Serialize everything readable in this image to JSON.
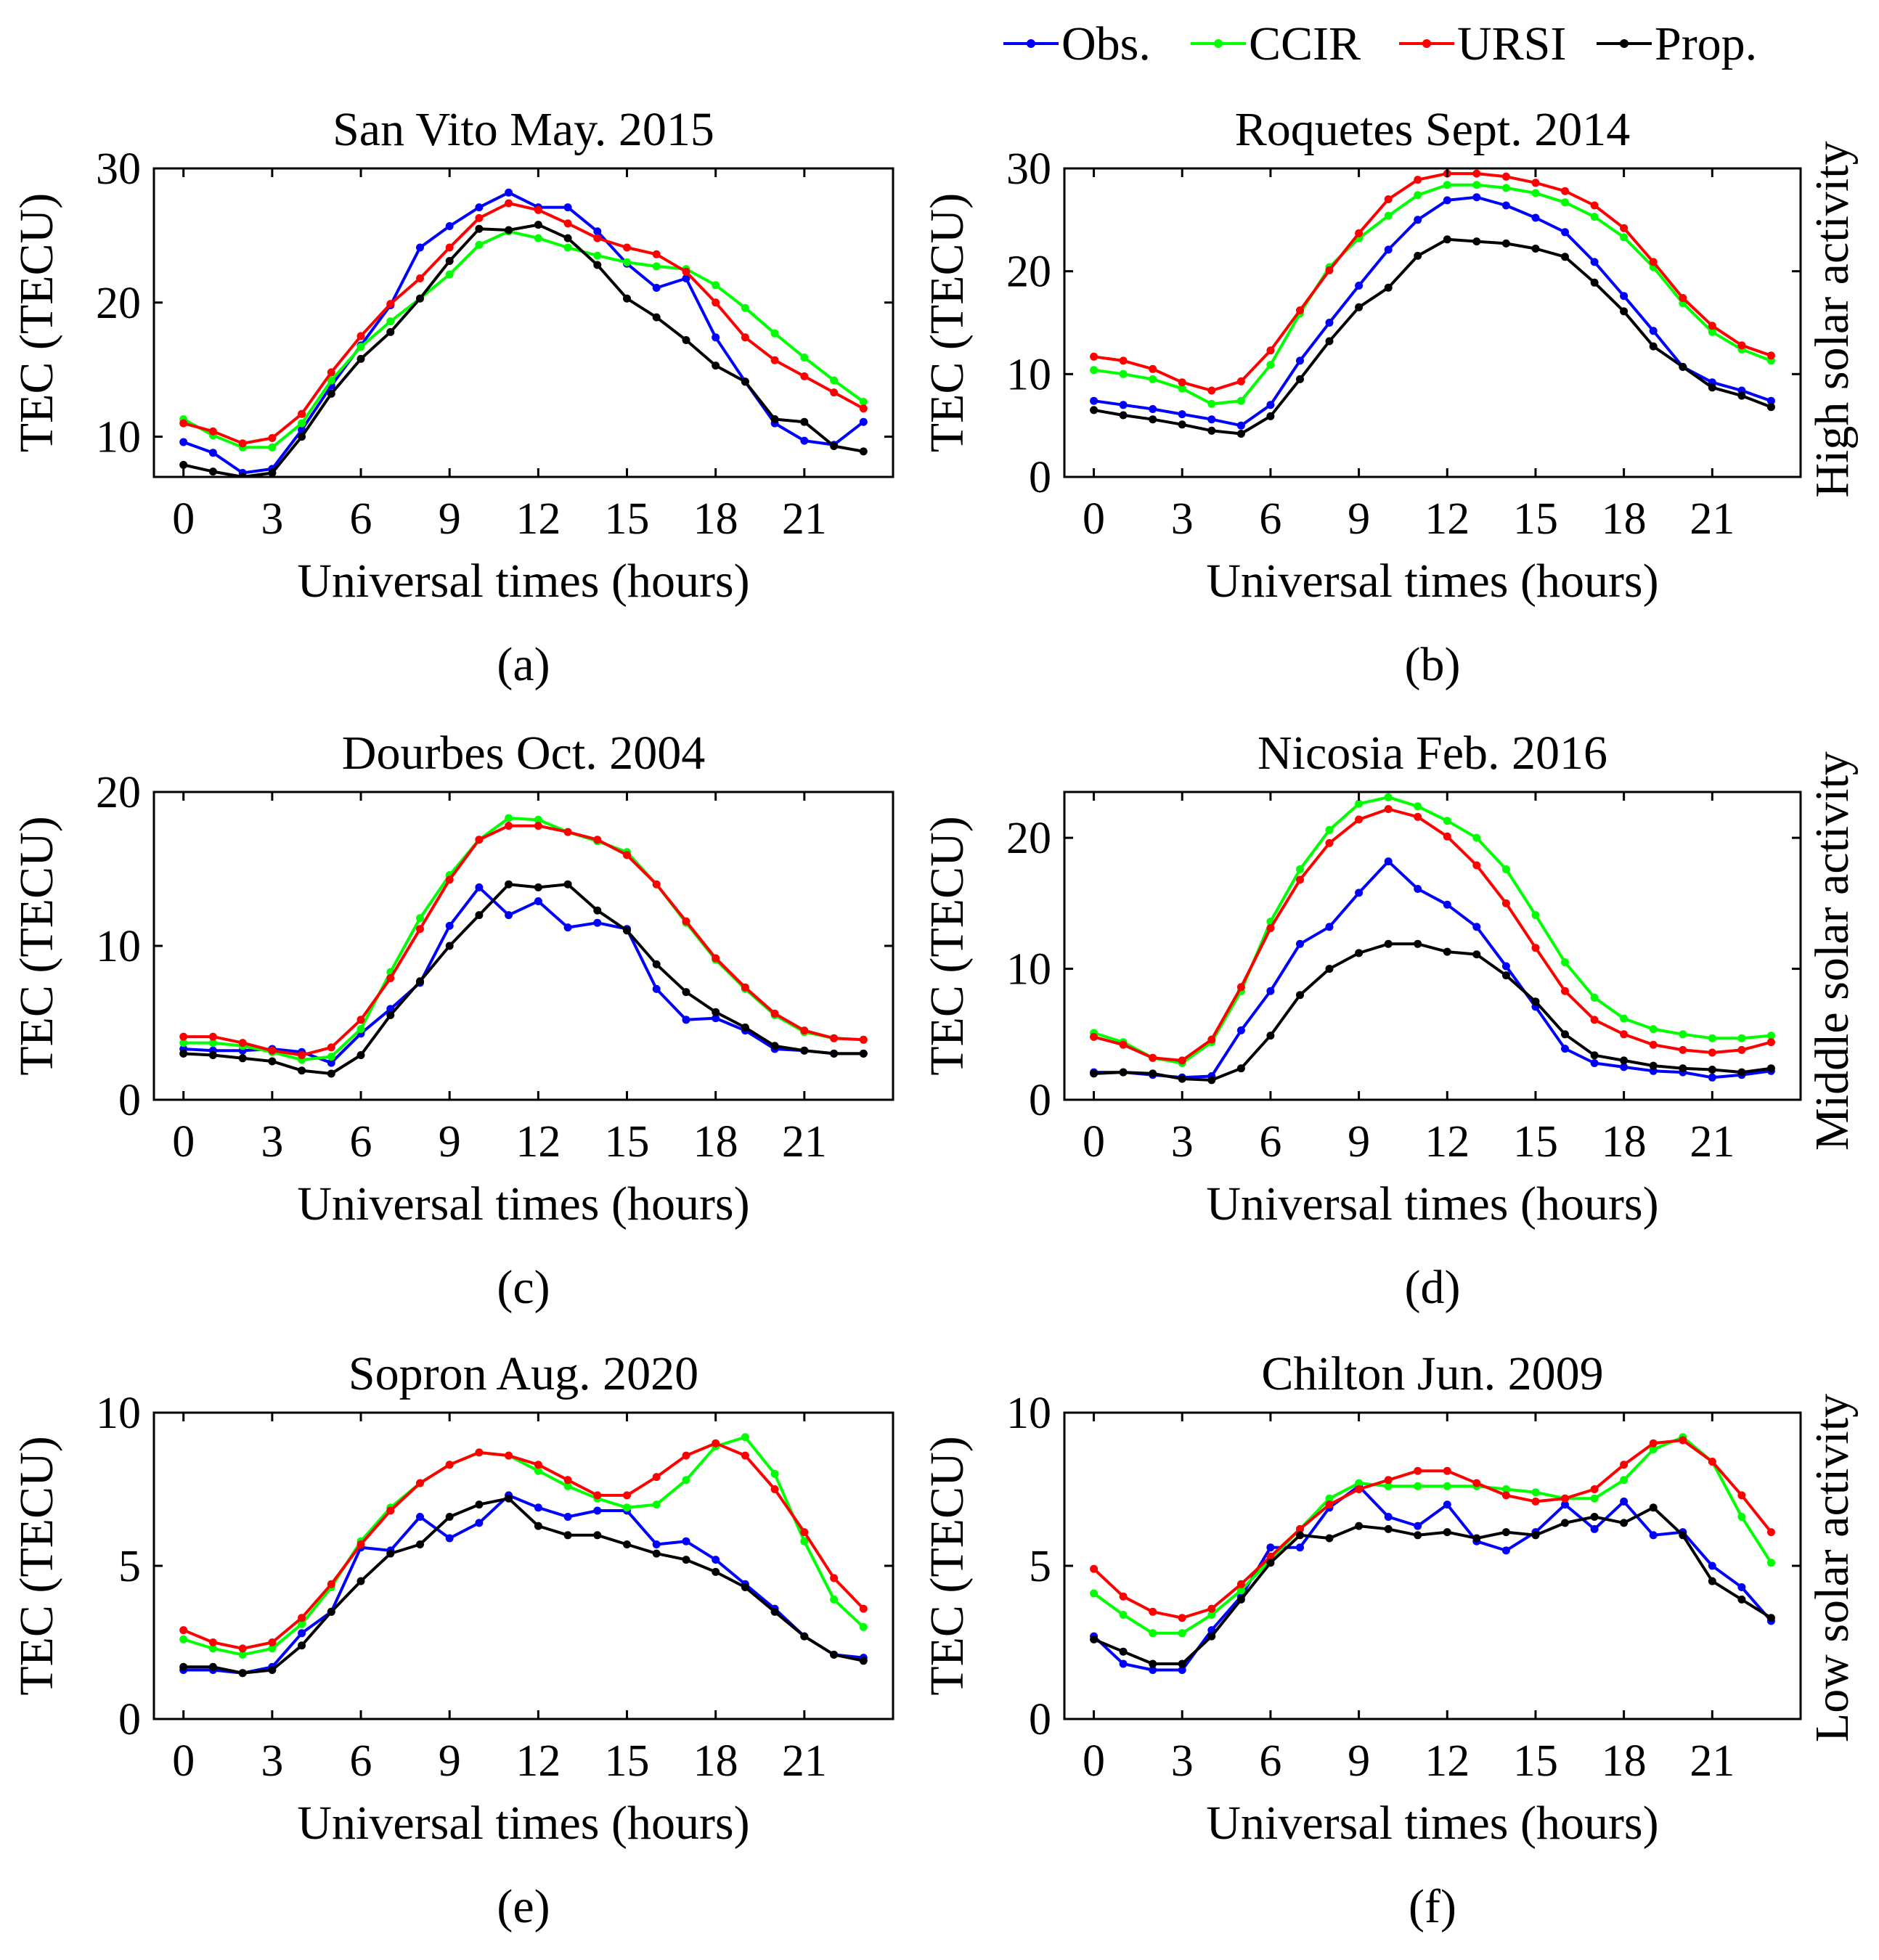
{
  "legend": [
    {
      "label": "Obs.",
      "color": "#0000ff"
    },
    {
      "label": "CCIR",
      "color": "#00ff00"
    },
    {
      "label": "URSI",
      "color": "#ff0000"
    },
    {
      "label": "Prop.",
      "color": "#000000"
    }
  ],
  "side_labels": [
    "High solar activity",
    "Middle solar activity",
    "Low solar activity"
  ],
  "chart_data": [
    {
      "type": "line",
      "title": "San Vito May. 2015",
      "caption": "(a)",
      "xlabel": "Universal times (hours)",
      "ylabel": "TEC (TECU)",
      "xlim": [
        -1,
        24
      ],
      "ylim": [
        7,
        30
      ],
      "xticks": [
        0,
        3,
        6,
        9,
        12,
        15,
        18,
        21
      ],
      "yticks": [
        10,
        20,
        30
      ],
      "x": [
        0,
        1,
        2,
        3,
        4,
        5,
        6,
        7,
        8,
        9,
        10,
        11,
        12,
        13,
        14,
        15,
        16,
        17,
        18,
        19,
        20,
        21,
        22,
        23
      ],
      "series": [
        {
          "name": "Obs.",
          "color": "#0000ff",
          "values": [
            9.6,
            8.8,
            7.3,
            7.6,
            10.5,
            13.8,
            16.8,
            19.8,
            24.1,
            25.7,
            27.1,
            28.2,
            27.1,
            27.1,
            25.3,
            22.9,
            21.1,
            21.8,
            17.4,
            14.1,
            11.0,
            9.7,
            9.4,
            11.1
          ]
        },
        {
          "name": "CCIR",
          "color": "#00ff00",
          "values": [
            11.3,
            10.1,
            9.2,
            9.2,
            11.0,
            14.2,
            16.7,
            18.6,
            20.3,
            22.1,
            24.3,
            25.3,
            24.8,
            24.1,
            23.5,
            23.0,
            22.7,
            22.5,
            21.3,
            19.6,
            17.7,
            15.9,
            14.2,
            12.6
          ]
        },
        {
          "name": "URSI",
          "color": "#ff0000",
          "values": [
            11.0,
            10.4,
            9.5,
            9.9,
            11.7,
            14.8,
            17.5,
            19.9,
            21.8,
            24.1,
            26.3,
            27.4,
            26.9,
            25.9,
            24.8,
            24.1,
            23.6,
            22.3,
            20.0,
            17.4,
            15.7,
            14.5,
            13.3,
            12.1
          ]
        },
        {
          "name": "Prop.",
          "color": "#000000",
          "values": [
            7.9,
            7.4,
            7.0,
            7.3,
            10.0,
            13.2,
            15.8,
            17.8,
            20.3,
            23.1,
            25.5,
            25.4,
            25.8,
            24.8,
            22.8,
            20.3,
            18.9,
            17.2,
            15.3,
            14.1,
            11.3,
            11.1,
            9.3,
            8.9
          ]
        }
      ]
    },
    {
      "type": "line",
      "title": "Roquetes Sept. 2014",
      "caption": "(b)",
      "xlabel": "Universal times (hours)",
      "ylabel": "TEC (TECU)",
      "xlim": [
        -1,
        24
      ],
      "ylim": [
        0,
        30
      ],
      "xticks": [
        0,
        3,
        6,
        9,
        12,
        15,
        18,
        21
      ],
      "yticks": [
        0,
        10,
        20,
        30
      ],
      "x": [
        0,
        1,
        2,
        3,
        4,
        5,
        6,
        7,
        8,
        9,
        10,
        11,
        12,
        13,
        14,
        15,
        16,
        17,
        18,
        19,
        20,
        21,
        22,
        23
      ],
      "series": [
        {
          "name": "Obs.",
          "color": "#0000ff",
          "values": [
            7.4,
            7.0,
            6.6,
            6.1,
            5.6,
            5.0,
            7.0,
            11.3,
            15.0,
            18.6,
            22.1,
            25.0,
            26.9,
            27.2,
            26.4,
            25.2,
            23.8,
            20.9,
            17.6,
            14.2,
            10.7,
            9.2,
            8.4,
            7.4
          ]
        },
        {
          "name": "CCIR",
          "color": "#00ff00",
          "values": [
            10.4,
            10.0,
            9.5,
            8.6,
            7.1,
            7.4,
            10.9,
            15.9,
            20.4,
            23.2,
            25.4,
            27.4,
            28.4,
            28.4,
            28.1,
            27.6,
            26.7,
            25.3,
            23.3,
            20.4,
            16.9,
            14.1,
            12.4,
            11.3
          ]
        },
        {
          "name": "URSI",
          "color": "#ff0000",
          "values": [
            11.7,
            11.3,
            10.5,
            9.2,
            8.4,
            9.3,
            12.3,
            16.2,
            20.1,
            23.7,
            27.0,
            28.9,
            29.5,
            29.5,
            29.2,
            28.6,
            27.8,
            26.4,
            24.2,
            20.9,
            17.4,
            14.7,
            12.8,
            11.8
          ]
        },
        {
          "name": "Prop.",
          "color": "#000000",
          "values": [
            6.5,
            6.0,
            5.6,
            5.1,
            4.5,
            4.2,
            5.9,
            9.5,
            13.2,
            16.5,
            18.4,
            21.5,
            23.1,
            22.9,
            22.7,
            22.2,
            21.4,
            18.9,
            16.1,
            12.7,
            10.7,
            8.7,
            7.9,
            6.8
          ]
        }
      ]
    },
    {
      "type": "line",
      "title": "Dourbes Oct. 2004",
      "caption": "(c)",
      "xlabel": "Universal times (hours)",
      "ylabel": "TEC (TECU)",
      "xlim": [
        -1,
        24
      ],
      "ylim": [
        0,
        20
      ],
      "xticks": [
        0,
        3,
        6,
        9,
        12,
        15,
        18,
        21
      ],
      "yticks": [
        0,
        10,
        20
      ],
      "x": [
        0,
        1,
        2,
        3,
        4,
        5,
        6,
        7,
        8,
        9,
        10,
        11,
        12,
        13,
        14,
        15,
        16,
        17,
        18,
        19,
        20,
        21,
        22,
        23
      ],
      "series": [
        {
          "name": "Obs.",
          "color": "#0000ff",
          "values": [
            3.3,
            3.2,
            3.2,
            3.3,
            3.1,
            2.4,
            4.3,
            5.9,
            7.6,
            11.3,
            13.8,
            12.0,
            12.9,
            11.2,
            11.5,
            11.1,
            7.2,
            5.2,
            5.3,
            4.5,
            3.3,
            3.2,
            3.0,
            3.0
          ]
        },
        {
          "name": "CCIR",
          "color": "#00ff00",
          "values": [
            3.7,
            3.7,
            3.5,
            3.1,
            2.6,
            2.8,
            4.6,
            8.3,
            11.8,
            14.6,
            16.9,
            18.3,
            18.2,
            17.4,
            16.8,
            16.1,
            14.0,
            11.5,
            9.1,
            7.2,
            5.5,
            4.4,
            4.0,
            3.9
          ]
        },
        {
          "name": "URSI",
          "color": "#ff0000",
          "values": [
            4.1,
            4.1,
            3.7,
            3.2,
            2.9,
            3.4,
            5.2,
            7.9,
            11.1,
            14.3,
            16.9,
            17.8,
            17.8,
            17.4,
            16.9,
            15.9,
            14.0,
            11.6,
            9.2,
            7.3,
            5.6,
            4.5,
            4.0,
            3.9
          ]
        },
        {
          "name": "Prop.",
          "color": "#000000",
          "values": [
            3.0,
            2.9,
            2.7,
            2.5,
            1.9,
            1.7,
            2.9,
            5.5,
            7.7,
            10.0,
            12.0,
            14.0,
            13.8,
            14.0,
            12.3,
            11.0,
            8.8,
            7.0,
            5.7,
            4.7,
            3.5,
            3.2,
            3.0,
            3.0
          ]
        }
      ]
    },
    {
      "type": "line",
      "title": "Nicosia Feb. 2016",
      "caption": "(d)",
      "xlabel": "Universal times (hours)",
      "ylabel": "TEC (TECU)",
      "xlim": [
        -1,
        24
      ],
      "ylim": [
        0,
        23.5
      ],
      "xticks": [
        0,
        3,
        6,
        9,
        12,
        15,
        18,
        21
      ],
      "yticks": [
        0,
        10,
        20
      ],
      "x": [
        0,
        1,
        2,
        3,
        4,
        5,
        6,
        7,
        8,
        9,
        10,
        11,
        12,
        13,
        14,
        15,
        16,
        17,
        18,
        19,
        20,
        21,
        22,
        23
      ],
      "series": [
        {
          "name": "Obs.",
          "color": "#0000ff",
          "values": [
            2.1,
            2.1,
            1.9,
            1.7,
            1.8,
            5.3,
            8.3,
            11.9,
            13.2,
            15.8,
            18.2,
            16.1,
            14.9,
            13.2,
            10.2,
            7.1,
            3.9,
            2.8,
            2.5,
            2.2,
            2.1,
            1.7,
            1.9,
            2.2
          ]
        },
        {
          "name": "CCIR",
          "color": "#00ff00",
          "values": [
            5.1,
            4.4,
            3.2,
            2.8,
            4.4,
            8.3,
            13.6,
            17.6,
            20.6,
            22.6,
            23.1,
            22.4,
            21.3,
            20.0,
            17.6,
            14.1,
            10.5,
            7.8,
            6.2,
            5.4,
            5.0,
            4.7,
            4.7,
            4.9
          ]
        },
        {
          "name": "URSI",
          "color": "#ff0000",
          "values": [
            4.8,
            4.2,
            3.2,
            3.0,
            4.6,
            8.6,
            13.1,
            16.8,
            19.6,
            21.4,
            22.2,
            21.6,
            20.1,
            17.9,
            15.0,
            11.6,
            8.3,
            6.1,
            5.0,
            4.2,
            3.8,
            3.6,
            3.8,
            4.4
          ]
        },
        {
          "name": "Prop.",
          "color": "#000000",
          "values": [
            2.0,
            2.1,
            2.0,
            1.6,
            1.5,
            2.4,
            4.9,
            8.0,
            10.0,
            11.2,
            11.9,
            11.9,
            11.3,
            11.1,
            9.5,
            7.5,
            5.0,
            3.4,
            3.0,
            2.6,
            2.4,
            2.3,
            2.1,
            2.4
          ]
        }
      ]
    },
    {
      "type": "line",
      "title": "Sopron Aug. 2020",
      "caption": "(e)",
      "xlabel": "Universal times (hours)",
      "ylabel": "TEC (TECU)",
      "xlim": [
        -1,
        24
      ],
      "ylim": [
        0,
        10
      ],
      "xticks": [
        0,
        3,
        6,
        9,
        12,
        15,
        18,
        21
      ],
      "yticks": [
        0,
        5,
        10
      ],
      "x": [
        0,
        1,
        2,
        3,
        4,
        5,
        6,
        7,
        8,
        9,
        10,
        11,
        12,
        13,
        14,
        15,
        16,
        17,
        18,
        19,
        20,
        21,
        22,
        23
      ],
      "series": [
        {
          "name": "Obs.",
          "color": "#0000ff",
          "values": [
            1.6,
            1.6,
            1.5,
            1.7,
            2.8,
            3.5,
            5.6,
            5.5,
            6.6,
            5.9,
            6.4,
            7.3,
            6.9,
            6.6,
            6.8,
            6.8,
            5.7,
            5.8,
            5.2,
            4.4,
            3.6,
            2.7,
            2.1,
            2.0
          ]
        },
        {
          "name": "CCIR",
          "color": "#00ff00",
          "values": [
            2.6,
            2.3,
            2.1,
            2.3,
            3.1,
            4.3,
            5.8,
            6.9,
            7.7,
            8.3,
            8.7,
            8.6,
            8.1,
            7.6,
            7.2,
            6.9,
            7.0,
            7.8,
            8.9,
            9.2,
            8.0,
            5.8,
            3.9,
            3.0
          ]
        },
        {
          "name": "URSI",
          "color": "#ff0000",
          "values": [
            2.9,
            2.5,
            2.3,
            2.5,
            3.3,
            4.4,
            5.7,
            6.8,
            7.7,
            8.3,
            8.7,
            8.6,
            8.3,
            7.8,
            7.3,
            7.3,
            7.9,
            8.6,
            9.0,
            8.6,
            7.5,
            6.1,
            4.6,
            3.6
          ]
        },
        {
          "name": "Prop.",
          "color": "#000000",
          "values": [
            1.7,
            1.7,
            1.5,
            1.6,
            2.4,
            3.5,
            4.5,
            5.4,
            5.7,
            6.6,
            7.0,
            7.2,
            6.3,
            6.0,
            6.0,
            5.7,
            5.4,
            5.2,
            4.8,
            4.3,
            3.5,
            2.7,
            2.1,
            1.9
          ]
        }
      ]
    },
    {
      "type": "line",
      "title": "Chilton Jun. 2009",
      "caption": "(f)",
      "xlabel": "Universal times (hours)",
      "ylabel": "TEC (TECU)",
      "xlim": [
        -1,
        24
      ],
      "ylim": [
        0,
        10
      ],
      "xticks": [
        0,
        3,
        6,
        9,
        12,
        15,
        18,
        21
      ],
      "yticks": [
        0,
        5,
        10
      ],
      "x": [
        0,
        1,
        2,
        3,
        4,
        5,
        6,
        7,
        8,
        9,
        10,
        11,
        12,
        13,
        14,
        15,
        16,
        17,
        18,
        19,
        20,
        21,
        22,
        23
      ],
      "series": [
        {
          "name": "Obs.",
          "color": "#0000ff",
          "values": [
            2.7,
            1.8,
            1.6,
            1.6,
            2.9,
            4.0,
            5.6,
            5.6,
            6.9,
            7.6,
            6.6,
            6.3,
            7.0,
            5.8,
            5.5,
            6.1,
            7.0,
            6.2,
            7.1,
            6.0,
            6.1,
            5.0,
            4.3,
            3.2
          ]
        },
        {
          "name": "CCIR",
          "color": "#00ff00",
          "values": [
            4.1,
            3.4,
            2.8,
            2.8,
            3.4,
            4.2,
            5.2,
            6.2,
            7.2,
            7.7,
            7.6,
            7.6,
            7.6,
            7.6,
            7.5,
            7.4,
            7.2,
            7.2,
            7.8,
            8.8,
            9.2,
            8.4,
            6.6,
            5.1
          ]
        },
        {
          "name": "URSI",
          "color": "#ff0000",
          "values": [
            4.9,
            4.0,
            3.5,
            3.3,
            3.6,
            4.4,
            5.3,
            6.2,
            7.0,
            7.5,
            7.8,
            8.1,
            8.1,
            7.7,
            7.3,
            7.1,
            7.2,
            7.5,
            8.3,
            9.0,
            9.1,
            8.4,
            7.3,
            6.1
          ]
        },
        {
          "name": "Prop.",
          "color": "#000000",
          "values": [
            2.6,
            2.2,
            1.8,
            1.8,
            2.7,
            3.9,
            5.1,
            6.0,
            5.9,
            6.3,
            6.2,
            6.0,
            6.1,
            5.9,
            6.1,
            6.0,
            6.4,
            6.6,
            6.4,
            6.9,
            6.0,
            4.5,
            3.9,
            3.3
          ]
        }
      ]
    }
  ]
}
